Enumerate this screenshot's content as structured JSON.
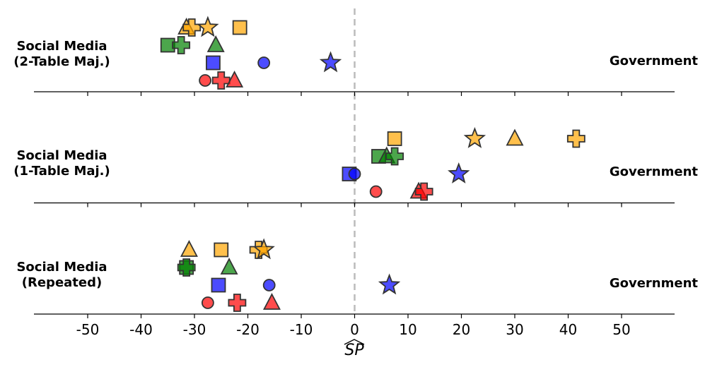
{
  "chart_data": {
    "type": "scatter",
    "xlabel": "SP",
    "xlim": [
      -60,
      60
    ],
    "xticks": [
      -50,
      -40,
      -30,
      -20,
      -10,
      0,
      10,
      20,
      30,
      40,
      50
    ],
    "xtick_labels": [
      "-50",
      "-40",
      "-30",
      "-20",
      "-10",
      "0",
      "10",
      "20",
      "30",
      "40",
      "50"
    ],
    "reference_line_x": 0,
    "colors": {
      "orange": "#ffa500",
      "green": "#008000",
      "blue": "#0000ff",
      "red": "#ff0000"
    },
    "panels": [
      {
        "left_label": "Social Media\n(2-Table Maj.)",
        "right_label": "Government",
        "points": [
          {
            "x": -31.5,
            "row": 0,
            "marker": "triangle",
            "color": "orange"
          },
          {
            "x": -30.5,
            "row": 0,
            "marker": "plus",
            "color": "orange"
          },
          {
            "x": -27.5,
            "row": 0,
            "marker": "star",
            "color": "orange"
          },
          {
            "x": -21.5,
            "row": 0,
            "marker": "square",
            "color": "orange"
          },
          {
            "x": -35,
            "row": 1,
            "marker": "square",
            "color": "green"
          },
          {
            "x": -32.5,
            "row": 1,
            "marker": "plus",
            "color": "green"
          },
          {
            "x": -26,
            "row": 1,
            "marker": "triangle",
            "color": "green"
          },
          {
            "x": -26.5,
            "row": 2,
            "marker": "square",
            "color": "blue"
          },
          {
            "x": -17,
            "row": 2,
            "marker": "circle",
            "color": "blue"
          },
          {
            "x": -4.5,
            "row": 2,
            "marker": "star",
            "color": "blue"
          },
          {
            "x": -28,
            "row": 3,
            "marker": "circle",
            "color": "red"
          },
          {
            "x": -25,
            "row": 3,
            "marker": "plus",
            "color": "red"
          },
          {
            "x": -22.5,
            "row": 3,
            "marker": "triangle",
            "color": "red"
          }
        ]
      },
      {
        "left_label": "Social Media\n(1-Table Maj.)",
        "right_label": "Government",
        "points": [
          {
            "x": 7.5,
            "row": 0,
            "marker": "square",
            "color": "orange"
          },
          {
            "x": 22.5,
            "row": 0,
            "marker": "star",
            "color": "orange"
          },
          {
            "x": 30,
            "row": 0,
            "marker": "triangle",
            "color": "orange"
          },
          {
            "x": 41.5,
            "row": 0,
            "marker": "plus",
            "color": "orange"
          },
          {
            "x": 4.5,
            "row": 1,
            "marker": "square",
            "color": "green"
          },
          {
            "x": 6,
            "row": 1,
            "marker": "triangle",
            "color": "green"
          },
          {
            "x": 7.5,
            "row": 1,
            "marker": "plus",
            "color": "green"
          },
          {
            "x": -1,
            "row": 2,
            "marker": "square",
            "color": "blue"
          },
          {
            "x": 0,
            "row": 2,
            "marker": "circle",
            "color": "blue"
          },
          {
            "x": 19.5,
            "row": 2,
            "marker": "star",
            "color": "blue"
          },
          {
            "x": 4,
            "row": 3,
            "marker": "circle",
            "color": "red"
          },
          {
            "x": 12,
            "row": 3,
            "marker": "triangle",
            "color": "red"
          },
          {
            "x": 13,
            "row": 3,
            "marker": "plus",
            "color": "red"
          }
        ]
      },
      {
        "left_label": "Social Media\n(Repeated)",
        "right_label": "Government",
        "points": [
          {
            "x": -31,
            "row": 0,
            "marker": "triangle",
            "color": "orange"
          },
          {
            "x": -25,
            "row": 0,
            "marker": "square",
            "color": "orange"
          },
          {
            "x": -18,
            "row": 0,
            "marker": "plus",
            "color": "orange"
          },
          {
            "x": -17,
            "row": 0,
            "marker": "star",
            "color": "orange"
          },
          {
            "x": -31.5,
            "row": 1,
            "marker": "square",
            "color": "green"
          },
          {
            "x": -31.5,
            "row": 1,
            "marker": "plus",
            "color": "green"
          },
          {
            "x": -23.5,
            "row": 1,
            "marker": "triangle",
            "color": "green"
          },
          {
            "x": -25.5,
            "row": 2,
            "marker": "square",
            "color": "blue"
          },
          {
            "x": -16,
            "row": 2,
            "marker": "circle",
            "color": "blue"
          },
          {
            "x": 6.5,
            "row": 2,
            "marker": "star",
            "color": "blue"
          },
          {
            "x": -27.5,
            "row": 3,
            "marker": "circle",
            "color": "red"
          },
          {
            "x": -22,
            "row": 3,
            "marker": "plus",
            "color": "red"
          },
          {
            "x": -15.5,
            "row": 3,
            "marker": "triangle",
            "color": "red"
          }
        ]
      }
    ]
  }
}
